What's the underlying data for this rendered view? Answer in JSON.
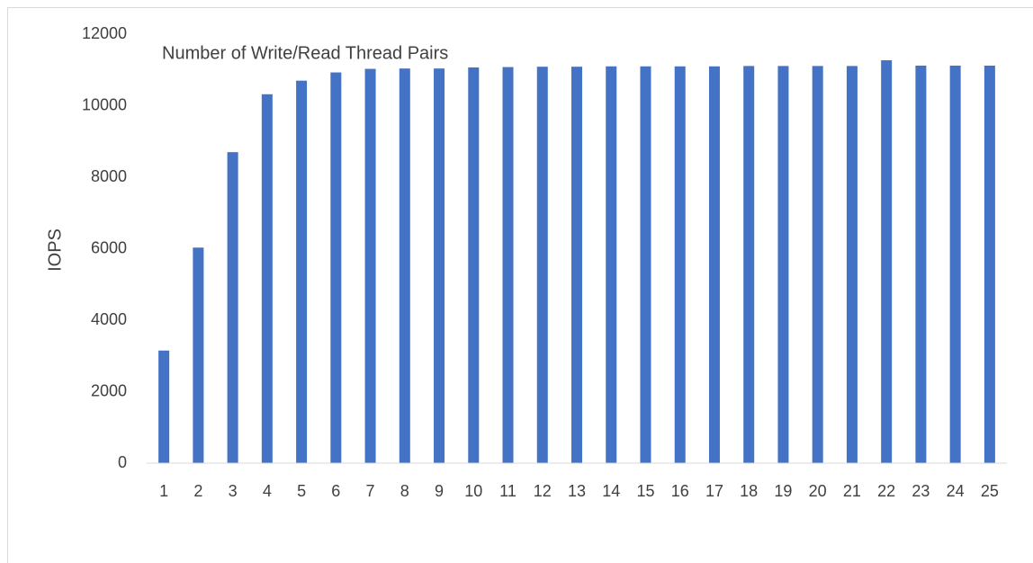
{
  "chart_data": {
    "type": "bar",
    "title": "Number of Write/Read Thread Pairs",
    "y_label": "IOPS",
    "categories": [
      "1",
      "2",
      "3",
      "4",
      "5",
      "6",
      "7",
      "8",
      "9",
      "10",
      "11",
      "12",
      "13",
      "14",
      "15",
      "16",
      "17",
      "18",
      "19",
      "20",
      "21",
      "22",
      "23",
      "24",
      "25"
    ],
    "values": [
      3150,
      6030,
      8700,
      10320,
      10700,
      10930,
      11030,
      11040,
      11040,
      11070,
      11080,
      11090,
      11090,
      11100,
      11100,
      11100,
      11100,
      11110,
      11110,
      11110,
      11110,
      11270,
      11120,
      11120,
      11120
    ],
    "color": "#4472c4",
    "ylim": [
      0,
      12000
    ],
    "yticks": [
      0,
      2000,
      4000,
      6000,
      8000,
      10000,
      12000
    ],
    "grid": false
  }
}
